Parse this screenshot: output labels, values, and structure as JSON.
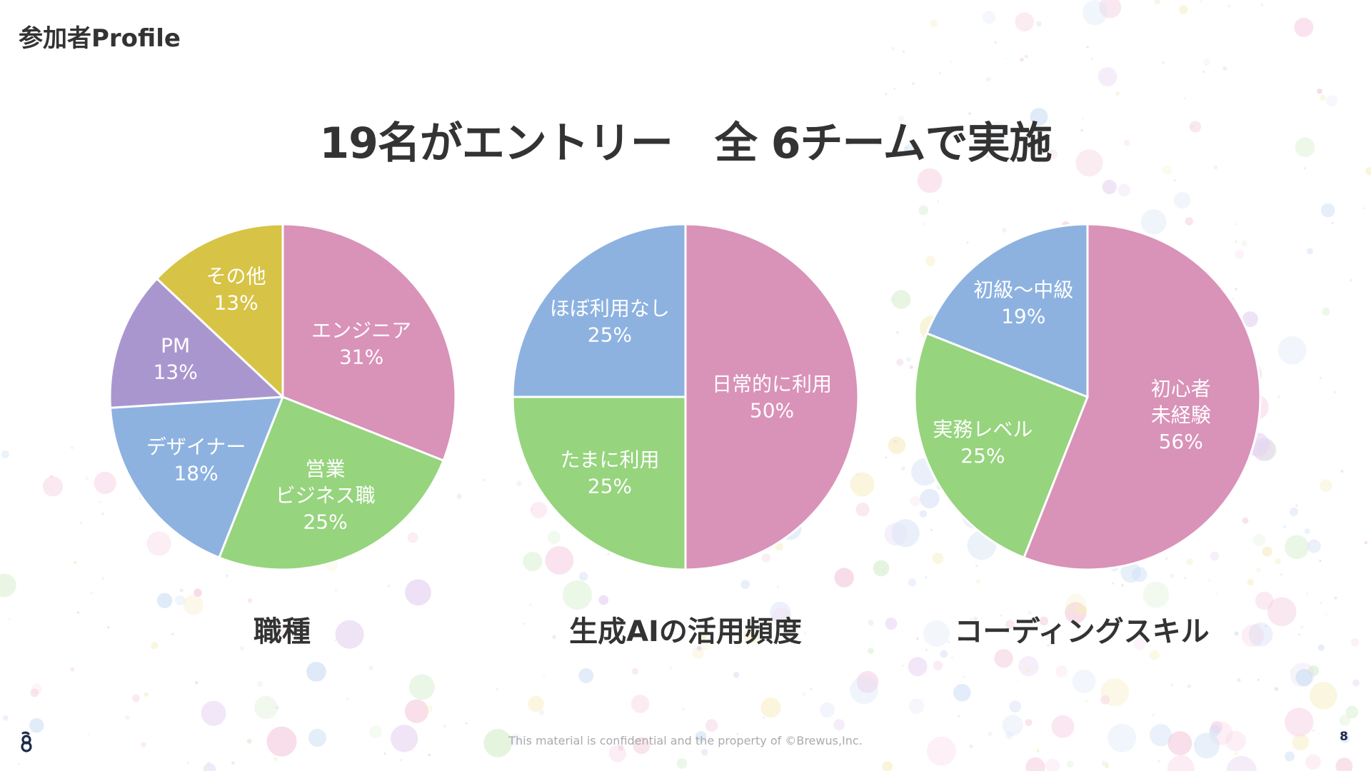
{
  "page": {
    "label": "参加者Profile",
    "headline": "19名がエントリー　全 6チームで実施",
    "footer_note": "This material is confidential and the property of ©Brewus,Inc.",
    "page_number": "8",
    "logo_icon": "brewus-logo-icon"
  },
  "colors": {
    "pink": "#d992b8",
    "green": "#96d47e",
    "blue": "#8db2e0",
    "purple": "#aa96cf",
    "yellow": "#d7c345",
    "text": "#333333",
    "slice_label": "#ffffff"
  },
  "chart_data": [
    {
      "type": "pie",
      "caption": "職種",
      "slices": [
        {
          "label": "エンジニア",
          "value": 31,
          "value_label": "31%",
          "color": "#d992b8"
        },
        {
          "label": "営業\nビジネス職",
          "value": 25,
          "value_label": "25%",
          "color": "#96d47e"
        },
        {
          "label": "デザイナー",
          "value": 18,
          "value_label": "18%",
          "color": "#8db2e0"
        },
        {
          "label": "PM",
          "value": 13,
          "value_label": "13%",
          "color": "#aa96cf"
        },
        {
          "label": "その他",
          "value": 13,
          "value_label": "13%",
          "color": "#d7c345"
        }
      ]
    },
    {
      "type": "pie",
      "caption": "生成AIの活用頻度",
      "slices": [
        {
          "label": "日常的に利用",
          "value": 50,
          "value_label": "50%",
          "color": "#d992b8"
        },
        {
          "label": "たまに利用",
          "value": 25,
          "value_label": "25%",
          "color": "#96d47e"
        },
        {
          "label": "ほぼ利用なし",
          "value": 25,
          "value_label": "25%",
          "color": "#8db2e0"
        }
      ]
    },
    {
      "type": "pie",
      "caption": "コーディングスキル",
      "slices": [
        {
          "label": "初心者\n未経験",
          "value": 56,
          "value_label": "56%",
          "color": "#d992b8"
        },
        {
          "label": "実務レベル",
          "value": 25,
          "value_label": "25%",
          "color": "#96d47e"
        },
        {
          "label": "初級～中級",
          "value": 19,
          "value_label": "19%",
          "color": "#8db2e0"
        }
      ]
    }
  ]
}
